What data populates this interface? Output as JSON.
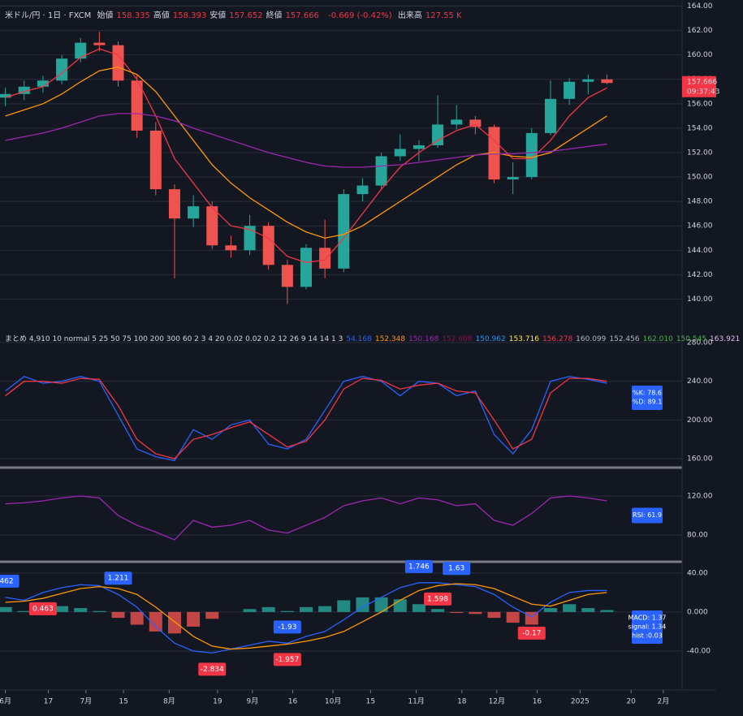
{
  "header": {
    "title": "米ドル/円 · 1日 · FXCM",
    "stats": [
      {
        "label": "始値",
        "value": 158.335
      },
      {
        "label": "高値",
        "value": 158.393
      },
      {
        "label": "安値",
        "value": 157.652
      },
      {
        "label": "終値",
        "value": 157.666
      }
    ],
    "change": "-0.669 (-0.42%)",
    "volume_label": "出来高",
    "volume": "127.55 K"
  },
  "indicator_summary": {
    "label": "まとめ 4,910 10 normal 5 25 50 75 100 200 300 60 2 3 4 20 0.02 0.02 0.2 12 26 9 14 14 1 3",
    "values": [
      {
        "text": "54.168",
        "color": "#2962ff"
      },
      {
        "text": "152.348",
        "color": "#ff9800"
      },
      {
        "text": "150.168",
        "color": "#9c27b0"
      },
      {
        "text": "152.608",
        "color": "#880e4f"
      },
      {
        "text": "150.962",
        "color": "#2196f3"
      },
      {
        "text": "153.716",
        "color": "#ffeb3b"
      },
      {
        "text": "156.278",
        "color": "#f23645"
      },
      {
        "text": "160.099",
        "color": "#b2b5be"
      },
      {
        "text": "152.456",
        "color": "#b2b5be"
      },
      {
        "text": "162.010",
        "color": "#4caf50"
      },
      {
        "text": "150.545",
        "color": "#4caf50"
      },
      {
        "text": "163.921",
        "color": "#e1bee7"
      }
    ]
  },
  "chart_data": [
    {
      "type": "candlestick",
      "last_price": 157.666,
      "countdown": "09:37:43",
      "up_color": "#26a69a",
      "down_color": "#ef5350",
      "x": [
        0,
        7,
        14,
        21,
        28,
        35,
        42,
        49,
        56,
        63,
        70,
        77,
        84,
        91,
        98,
        105,
        112,
        119,
        126,
        133,
        140,
        147,
        154,
        161,
        168,
        175,
        182,
        189,
        196,
        203,
        210,
        217,
        224
      ],
      "open": [
        156.5,
        156.8,
        157.4,
        157.9,
        159.7,
        161.0,
        160.8,
        157.9,
        153.8,
        149.0,
        146.6,
        147.6,
        144.4,
        144.0,
        146.0,
        142.8,
        141.0,
        144.2,
        142.5,
        148.6,
        149.3,
        151.7,
        152.3,
        152.6,
        154.3,
        154.7,
        154.1,
        149.8,
        150.0,
        153.6,
        156.4,
        157.8,
        158.0
      ],
      "high": [
        157.3,
        157.9,
        158.3,
        160.0,
        161.4,
        161.9,
        161.1,
        158.3,
        154.5,
        149.4,
        148.5,
        148.0,
        145.2,
        146.9,
        146.3,
        143.2,
        144.5,
        146.5,
        149.0,
        149.9,
        152.0,
        153.5,
        153.0,
        156.7,
        155.9,
        155.0,
        154.3,
        151.2,
        154.0,
        157.9,
        158.1,
        158.4,
        158.4
      ],
      "low": [
        155.8,
        156.3,
        156.9,
        157.6,
        159.4,
        160.3,
        157.4,
        153.2,
        148.5,
        141.7,
        145.9,
        144.1,
        143.4,
        143.6,
        142.4,
        139.6,
        140.8,
        141.7,
        142.2,
        148.0,
        149.0,
        151.3,
        151.3,
        152.4,
        153.9,
        153.5,
        149.5,
        148.6,
        149.8,
        153.4,
        155.9,
        156.8,
        157.6
      ],
      "close": [
        156.8,
        157.4,
        157.9,
        159.7,
        161.0,
        160.8,
        157.9,
        153.8,
        149.0,
        146.6,
        147.6,
        144.4,
        144.0,
        146.0,
        142.8,
        141.0,
        144.2,
        142.5,
        148.6,
        149.3,
        151.7,
        152.3,
        152.6,
        154.3,
        154.7,
        154.1,
        149.8,
        150.0,
        153.6,
        156.4,
        157.8,
        158.0,
        157.7
      ],
      "series": [
        {
          "color": "#f23645",
          "values": [
            156.5,
            157.0,
            157.4,
            158.5,
            159.8,
            160.5,
            160.0,
            158.0,
            155.0,
            151.5,
            149.5,
            147.5,
            146.0,
            145.7,
            145.0,
            143.5,
            143.0,
            143.2,
            145.0,
            147.0,
            149.0,
            150.8,
            152.0,
            153.0,
            153.8,
            154.3,
            153.0,
            151.5,
            151.5,
            153.0,
            155.0,
            156.5,
            157.3
          ]
        },
        {
          "color": "#ff9800",
          "values": [
            155.0,
            155.5,
            156.0,
            156.8,
            157.8,
            158.7,
            159.0,
            158.4,
            157.0,
            155.0,
            153.0,
            151.0,
            149.5,
            148.3,
            147.3,
            146.3,
            145.5,
            145.0,
            145.3,
            146.0,
            147.0,
            148.0,
            149.0,
            150.0,
            151.0,
            151.8,
            152.0,
            151.7,
            151.6,
            152.0,
            153.0,
            154.0,
            155.0
          ]
        },
        {
          "color": "#9c27b0",
          "values": [
            153.0,
            153.3,
            153.6,
            154.0,
            154.5,
            155.0,
            155.2,
            155.2,
            155.0,
            154.6,
            154.0,
            153.5,
            153.0,
            152.5,
            152.0,
            151.6,
            151.2,
            150.9,
            150.8,
            150.8,
            150.9,
            151.0,
            151.2,
            151.4,
            151.6,
            151.8,
            151.9,
            151.9,
            152.0,
            152.1,
            152.3,
            152.5,
            152.7
          ]
        }
      ],
      "xlim": [
        -2,
        252
      ],
      "xticks": [
        {
          "value": 0,
          "label": "6月"
        },
        {
          "value": 16,
          "label": "17"
        },
        {
          "value": 30,
          "label": "7月"
        },
        {
          "value": 44,
          "label": "15"
        },
        {
          "value": 61,
          "label": "8月"
        },
        {
          "value": 79,
          "label": "19"
        },
        {
          "value": 92,
          "label": "9月"
        },
        {
          "value": 107,
          "label": "16"
        },
        {
          "value": 122,
          "label": "10月"
        },
        {
          "value": 136,
          "label": "15"
        },
        {
          "value": 153,
          "label": "11月"
        },
        {
          "value": 170,
          "label": "18"
        },
        {
          "value": 183,
          "label": "12月"
        },
        {
          "value": 198,
          "label": "16"
        },
        {
          "value": 214,
          "label": "2025"
        },
        {
          "value": 233,
          "label": "20"
        },
        {
          "value": 245,
          "label": "2月"
        }
      ],
      "ylim": [
        137.9,
        164.5
      ],
      "yticks": [
        {
          "value": 140,
          "label": "140.00"
        },
        {
          "value": 142,
          "label": "142.00"
        },
        {
          "value": 144,
          "label": "144.00"
        },
        {
          "value": 146,
          "label": "146.00"
        },
        {
          "value": 148,
          "label": "148.00"
        },
        {
          "value": 150,
          "label": "150.00"
        },
        {
          "value": 152,
          "label": "152.00"
        },
        {
          "value": 154,
          "label": "154.00"
        },
        {
          "value": 156,
          "label": "156.00"
        },
        {
          "value": 158,
          "label": "158.00"
        },
        {
          "value": 160,
          "label": "160.00"
        },
        {
          "value": 162,
          "label": "162.00"
        },
        {
          "value": 164,
          "label": "164.00"
        }
      ]
    },
    {
      "type": "line",
      "info": [
        "%K: 78.6",
        "%D: 89.1"
      ],
      "ylim": [
        151.6,
        294.3
      ],
      "yticks": [
        {
          "value": 160,
          "label": "160.00"
        },
        {
          "value": 200,
          "label": "200.00"
        },
        {
          "value": 240,
          "label": "240.00"
        },
        {
          "value": 280,
          "label": "280.00"
        }
      ],
      "series": [
        {
          "color": "#2962ff",
          "values": [
            230,
            245,
            238,
            240,
            245,
            240,
            205,
            170,
            162,
            158,
            190,
            180,
            195,
            200,
            175,
            170,
            180,
            210,
            240,
            245,
            240,
            225,
            240,
            238,
            225,
            230,
            185,
            165,
            190,
            240,
            245,
            242,
            238
          ]
        },
        {
          "color": "#f23645",
          "values": [
            225,
            240,
            240,
            238,
            243,
            242,
            215,
            180,
            165,
            160,
            180,
            185,
            192,
            198,
            185,
            172,
            178,
            200,
            232,
            243,
            241,
            232,
            236,
            238,
            230,
            228,
            200,
            170,
            180,
            228,
            243,
            243,
            240
          ]
        }
      ]
    },
    {
      "type": "line",
      "info": [
        "RSI: 61.9"
      ],
      "ylim": [
        54.2,
        145.8
      ],
      "yticks": [
        {
          "value": 80,
          "label": "80.00"
        },
        {
          "value": 120,
          "label": "120.00"
        }
      ],
      "series": [
        {
          "color": "#9c27b0",
          "values": [
            112,
            113,
            115,
            118,
            120,
            118,
            100,
            90,
            83,
            75,
            95,
            88,
            90,
            95,
            85,
            82,
            90,
            98,
            110,
            115,
            118,
            112,
            118,
            116,
            110,
            112,
            95,
            90,
            102,
            118,
            120,
            118,
            115
          ]
        }
      ]
    },
    {
      "type": "line",
      "info": [
        "MACD: 1.37",
        "signal: 1.34",
        "hist :0.03"
      ],
      "ylim": [
        -80,
        49
      ],
      "yticks": [
        {
          "value": -40,
          "label": "-40.00"
        },
        {
          "value": 0,
          "label": "0.000"
        },
        {
          "value": 40,
          "label": "40.00"
        }
      ],
      "histogram": {
        "up_color": "#26a69a",
        "down_color": "#ef5350",
        "values": [
          5,
          1,
          6,
          6,
          4,
          1,
          -6,
          -13,
          -20,
          -22,
          -15,
          -7,
          0,
          3,
          5,
          1,
          5,
          6,
          12,
          15,
          15,
          13,
          8,
          3,
          -1,
          -2,
          -6,
          -11,
          -13,
          4,
          8,
          4,
          2
        ]
      },
      "series": [
        {
          "color": "#2962ff",
          "values": [
            15,
            12,
            20,
            25,
            28,
            27,
            18,
            5,
            -15,
            -32,
            -40,
            -42,
            -38,
            -34,
            -30,
            -32,
            -25,
            -20,
            -8,
            5,
            15,
            25,
            30,
            30,
            28,
            26,
            18,
            5,
            -5,
            10,
            20,
            22,
            22
          ]
        },
        {
          "color": "#ff9800",
          "values": [
            10,
            11,
            14,
            19,
            24,
            26,
            24,
            18,
            5,
            -10,
            -25,
            -35,
            -38,
            -37,
            -35,
            -33,
            -30,
            -26,
            -20,
            -10,
            0,
            12,
            22,
            27,
            29,
            28,
            24,
            16,
            8,
            6,
            12,
            18,
            20
          ]
        }
      ],
      "annotations": [
        {
          "x": 0,
          "label": ".462",
          "color": "#2962ff"
        },
        {
          "x": 14,
          "label": "0.463",
          "color": "#f23645"
        },
        {
          "x": 42,
          "label": "1.211",
          "color": "#2962ff"
        },
        {
          "x": 77,
          "label": "-2.834",
          "color": "#f23645"
        },
        {
          "x": 105,
          "label": "-1.93",
          "color": "#2962ff"
        },
        {
          "x": 105,
          "label": "-1.957",
          "color": "#f23645"
        },
        {
          "x": 154,
          "label": "1.746",
          "color": "#2962ff"
        },
        {
          "x": 168,
          "label": "1.63",
          "color": "#2962ff"
        },
        {
          "x": 161,
          "label": "1.598",
          "color": "#f23645"
        },
        {
          "x": 196,
          "label": "-0.17",
          "color": "#f23645"
        }
      ]
    }
  ]
}
